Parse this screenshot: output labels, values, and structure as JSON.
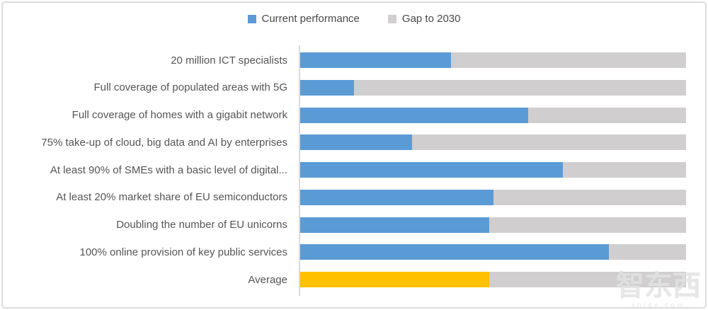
{
  "legend": {
    "items": [
      {
        "label": "Current performance",
        "color": "#5B9BD5"
      },
      {
        "label": "Gap to 2030",
        "color": "#D0CECE"
      }
    ]
  },
  "chart_data": {
    "type": "bar",
    "orientation": "horizontal",
    "stacked": true,
    "title": "",
    "xlabel": "",
    "ylabel": "",
    "xlim": [
      0,
      100
    ],
    "grid": false,
    "legend_position": "top",
    "categories": [
      "20 million ICT specialists",
      "Full coverage of populated areas with 5G",
      "Full coverage of homes with a gigabit network",
      "75% take-up of cloud, big data and AI by enterprises",
      "At least 90% of SMEs with a basic level of digital...",
      "At least 20% market share of EU semiconductors",
      "Doubling the number of EU unicorns",
      "100% online provision of key public services",
      "Average"
    ],
    "series": [
      {
        "name": "Current performance",
        "color": "#5B9BD5",
        "values": [
          39,
          14,
          59,
          29,
          68,
          50,
          49,
          80,
          49
        ]
      },
      {
        "name": "Gap to 2030",
        "color": "#D0CECE",
        "values": [
          61,
          86,
          41,
          71,
          32,
          50,
          51,
          20,
          51
        ]
      }
    ],
    "highlight": {
      "category": "Average",
      "color": "#FFC000"
    },
    "axis_color": "#D9D9D9"
  },
  "watermark": {
    "text": "智东西",
    "subtext": "zhidx.com"
  }
}
